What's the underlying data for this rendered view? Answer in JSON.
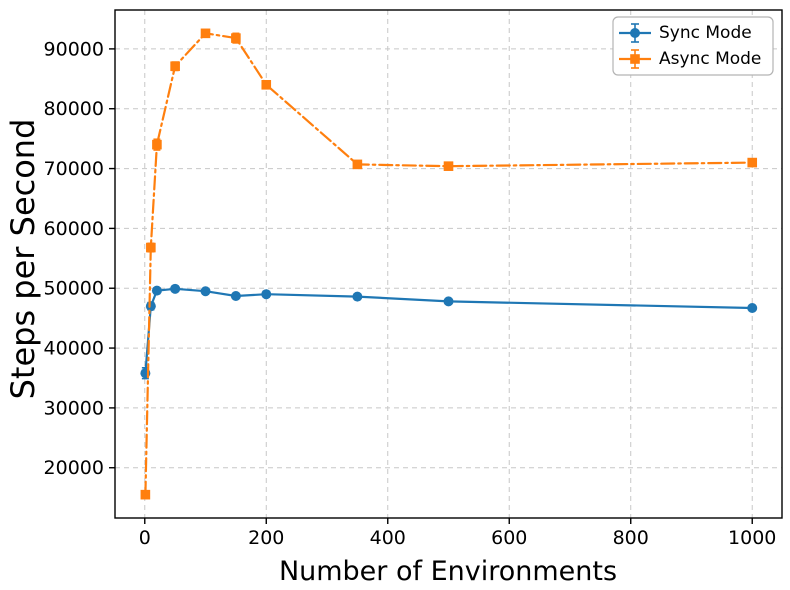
{
  "chart_data": {
    "type": "line",
    "title": "",
    "xlabel": "Number of Environments",
    "ylabel": "Steps per Second",
    "x": [
      1,
      10,
      20,
      50,
      100,
      150,
      200,
      350,
      500,
      1000
    ],
    "series": [
      {
        "name": "Sync Mode",
        "color": "#1f77b4",
        "marker": "circle",
        "linestyle": "solid",
        "values": [
          35800,
          47000,
          49600,
          49900,
          49500,
          48700,
          49000,
          48600,
          47800,
          46700
        ],
        "yerr": [
          900,
          600,
          400,
          300,
          250,
          250,
          250,
          250,
          250,
          250
        ]
      },
      {
        "name": "Async Mode",
        "color": "#ff7f0e",
        "marker": "square",
        "linestyle": "dashdot",
        "values": [
          15500,
          56800,
          74000,
          87100,
          92600,
          91800,
          84000,
          70700,
          70400,
          71000
        ],
        "yerr": [
          500,
          700,
          900,
          700,
          600,
          800,
          600,
          400,
          400,
          500
        ]
      }
    ],
    "xticks": [
      0,
      200,
      400,
      600,
      800,
      1000
    ],
    "yticks": [
      20000,
      30000,
      40000,
      50000,
      60000,
      70000,
      80000,
      90000
    ],
    "xlim": [
      -49,
      1049
    ],
    "ylim": [
      11600,
      96500
    ],
    "grid": true,
    "grid_style": "dashed",
    "grid_color": "#c7c7c7",
    "legend_position": "upper right",
    "axis_color": "#000000",
    "background": "#ffffff"
  }
}
